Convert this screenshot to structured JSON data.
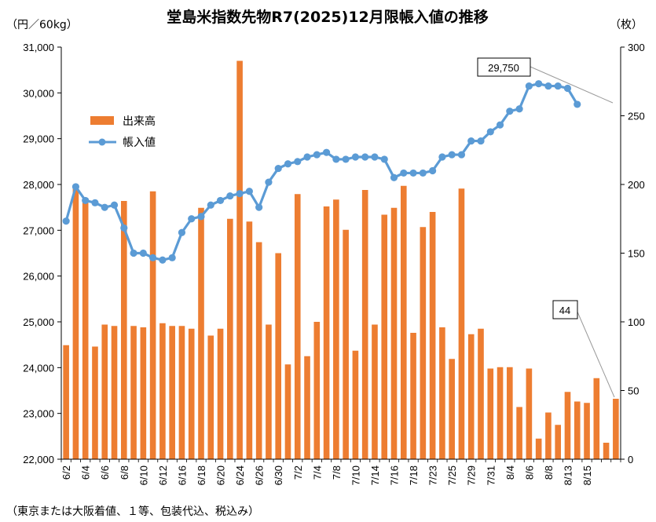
{
  "chart_data": {
    "type": "bar+line",
    "title": "堂島米指数先物R7(2025)12月限帳入値の推移",
    "left_axis_unit": "（円／60kg）",
    "right_axis_unit": "（枚）",
    "left_axis": {
      "min": 22000,
      "max": 31000,
      "ticks": [
        "22,000",
        "23,000",
        "24,000",
        "25,000",
        "26,000",
        "27,000",
        "28,000",
        "29,000",
        "30,000",
        "31,000"
      ]
    },
    "right_axis": {
      "min": 0,
      "max": 300,
      "ticks": [
        "0",
        "50",
        "100",
        "150",
        "200",
        "250",
        "300"
      ]
    },
    "x_tick_labels": [
      "6/2",
      "6/4",
      "6/6",
      "6/8",
      "6/10",
      "6/12",
      "6/16",
      "6/18",
      "6/20",
      "6/24",
      "6/26",
      "6/30",
      "7/2",
      "7/4",
      "7/8",
      "7/10",
      "7/14",
      "7/16",
      "7/18",
      "7/23",
      "7/25",
      "7/29",
      "7/31",
      "8/4",
      "8/6",
      "8/8",
      "8/13",
      "8/15"
    ],
    "x_tick_every": 2,
    "legend": {
      "position": "upper-left",
      "items": [
        {
          "label": "出来高",
          "type": "bar",
          "color": "#ED7D31"
        },
        {
          "label": "帳入値",
          "type": "line",
          "color": "#5B9BD5"
        }
      ]
    },
    "series": [
      {
        "name": "出来高",
        "type": "bar",
        "axis": "right",
        "color": "#ED7D31",
        "values": [
          83,
          197,
          187,
          82,
          98,
          97,
          188,
          97,
          96,
          195,
          99,
          97,
          97,
          95,
          183,
          90,
          95,
          175,
          290,
          173,
          158,
          98,
          150,
          69,
          193,
          75,
          100,
          184,
          189,
          167,
          79,
          196,
          98,
          178,
          183,
          199,
          92,
          169,
          180,
          96,
          73,
          197,
          91,
          95,
          66,
          67,
          67,
          38,
          66,
          15,
          34,
          25,
          49,
          42,
          41,
          59,
          12,
          44
        ],
        "x_indices": [
          0,
          1,
          2,
          3,
          4,
          5,
          6,
          7,
          8,
          9,
          10,
          11,
          12,
          13,
          14,
          15,
          16,
          17,
          18,
          19,
          20,
          21,
          22,
          23,
          24,
          25,
          26,
          27,
          28,
          29,
          30,
          31,
          32,
          33,
          34,
          35,
          36,
          37,
          38,
          39,
          40,
          41,
          42,
          43,
          44,
          45,
          46,
          47,
          48,
          49,
          50,
          51,
          52,
          53,
          54,
          55,
          56,
          57
        ]
      },
      {
        "name": "帳入値",
        "type": "line",
        "axis": "left",
        "color": "#5B9BD5",
        "values": [
          27200,
          27950,
          27650,
          27600,
          27500,
          27550,
          27050,
          26500,
          26500,
          26400,
          26350,
          26400,
          26950,
          27250,
          27300,
          27550,
          27650,
          27750,
          27800,
          27850,
          27500,
          28050,
          28350,
          28450,
          28500,
          28600,
          28650,
          28700,
          28550,
          28550,
          28600,
          28600,
          28600,
          28550,
          28150,
          28250,
          28250,
          28250,
          28300,
          28600,
          28650,
          28650,
          28950,
          28950,
          29150,
          29300,
          29600,
          29650,
          30150,
          30200,
          30150,
          30150,
          30100,
          29750
        ],
        "x_indices": [
          0,
          1,
          2,
          3,
          4,
          5,
          6,
          7,
          8,
          9,
          10,
          11,
          12,
          13,
          14,
          15,
          16,
          17,
          18,
          19,
          20,
          21,
          22,
          23,
          24,
          25,
          26,
          27,
          28,
          29,
          30,
          31,
          32,
          33,
          34,
          35,
          36,
          37,
          38,
          39,
          40,
          41,
          42,
          43,
          44,
          45,
          46,
          47,
          48,
          49,
          50,
          51,
          52,
          53
        ]
      }
    ],
    "annotations": [
      {
        "text": "29,750",
        "target_series": "帳入値"
      },
      {
        "text": "44",
        "target_series": "出来高"
      }
    ],
    "footnote": "（東京または大阪着値、１等、包装代込、税込み）",
    "grid": false
  }
}
